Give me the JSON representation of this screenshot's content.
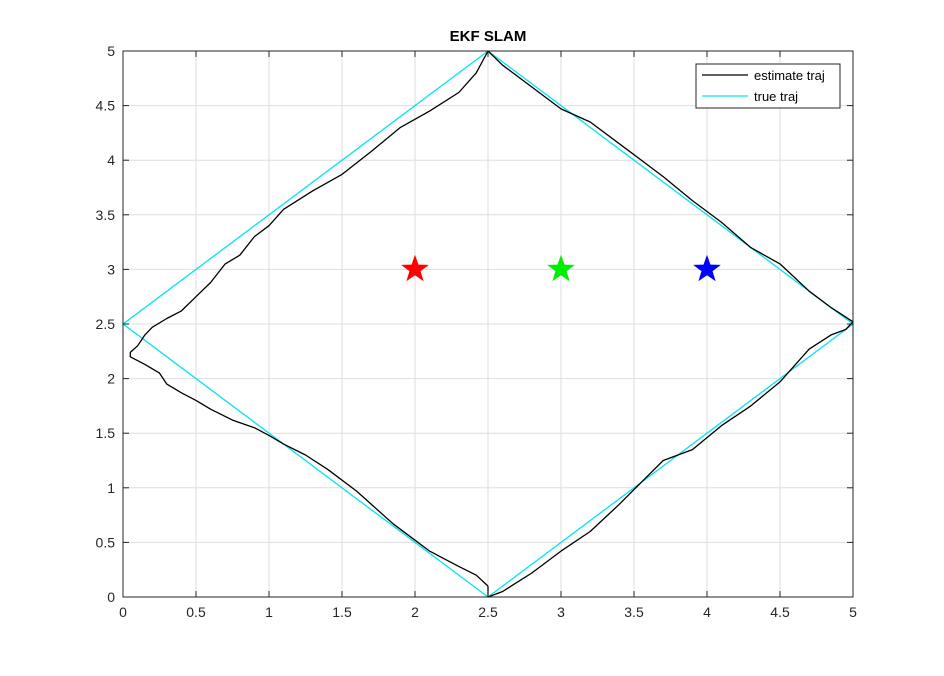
{
  "chart_data": {
    "type": "line",
    "title": "EKF SLAM",
    "xlabel": "",
    "ylabel": "",
    "xlim": [
      0,
      5
    ],
    "ylim": [
      0,
      5
    ],
    "xticks": [
      "0",
      "0.5",
      "1",
      "1.5",
      "2",
      "2.5",
      "3",
      "3.5",
      "4",
      "4.5",
      "5"
    ],
    "yticks": [
      "0",
      "0.5",
      "1",
      "1.5",
      "2",
      "2.5",
      "3",
      "3.5",
      "4",
      "4.5",
      "5"
    ],
    "grid": true,
    "legend_position": "top-right",
    "series": [
      {
        "name": "estimate traj",
        "color": "#000000",
        "x": [
          2.5,
          2.42,
          2.3,
          2.2,
          2.1,
          2.0,
          1.85,
          1.6,
          1.4,
          1.25,
          1.1,
          1.0,
          0.9,
          0.75,
          0.6,
          0.5,
          0.4,
          0.3,
          0.25,
          0.15,
          0.05,
          0.05,
          0.1,
          0.15,
          0.2,
          0.3,
          0.4,
          0.5,
          0.6,
          0.7,
          0.8,
          0.9,
          1.0,
          1.1,
          1.3,
          1.5,
          1.7,
          1.9,
          2.1,
          2.3,
          2.42,
          2.5,
          2.6,
          2.8,
          3.0,
          3.2,
          3.5,
          3.7,
          3.9,
          4.1,
          4.3,
          4.5,
          4.7,
          4.85,
          5.0,
          4.95,
          4.85,
          4.7,
          4.5,
          4.3,
          4.1,
          3.9,
          3.7,
          3.55,
          3.4,
          3.2,
          3.0,
          2.8,
          2.6,
          2.5,
          2.5
        ],
        "y": [
          0.1,
          0.2,
          0.28,
          0.35,
          0.42,
          0.52,
          0.67,
          0.97,
          1.17,
          1.3,
          1.4,
          1.48,
          1.55,
          1.62,
          1.72,
          1.8,
          1.87,
          1.95,
          2.05,
          2.13,
          2.2,
          2.24,
          2.3,
          2.4,
          2.47,
          2.55,
          2.62,
          2.75,
          2.88,
          3.05,
          3.13,
          3.3,
          3.4,
          3.55,
          3.72,
          3.87,
          4.08,
          4.3,
          4.45,
          4.62,
          4.8,
          5.0,
          4.87,
          4.67,
          4.47,
          4.35,
          4.05,
          3.85,
          3.63,
          3.43,
          3.2,
          3.05,
          2.8,
          2.65,
          2.52,
          2.45,
          2.4,
          2.27,
          1.97,
          1.75,
          1.57,
          1.35,
          1.25,
          1.05,
          0.85,
          0.6,
          0.42,
          0.22,
          0.05,
          0.0,
          0.1
        ]
      },
      {
        "name": "true traj",
        "color": "#00e5ee",
        "x": [
          2.5,
          0.0,
          2.5,
          5.0,
          2.5
        ],
        "y": [
          0.0,
          2.5,
          5.0,
          2.5,
          0.0
        ]
      }
    ],
    "landmarks": [
      {
        "x": 2.0,
        "y": 3.0,
        "color": "#ff0000"
      },
      {
        "x": 3.0,
        "y": 3.0,
        "color": "#00ee00"
      },
      {
        "x": 4.0,
        "y": 3.0,
        "color": "#0000ff"
      }
    ]
  }
}
